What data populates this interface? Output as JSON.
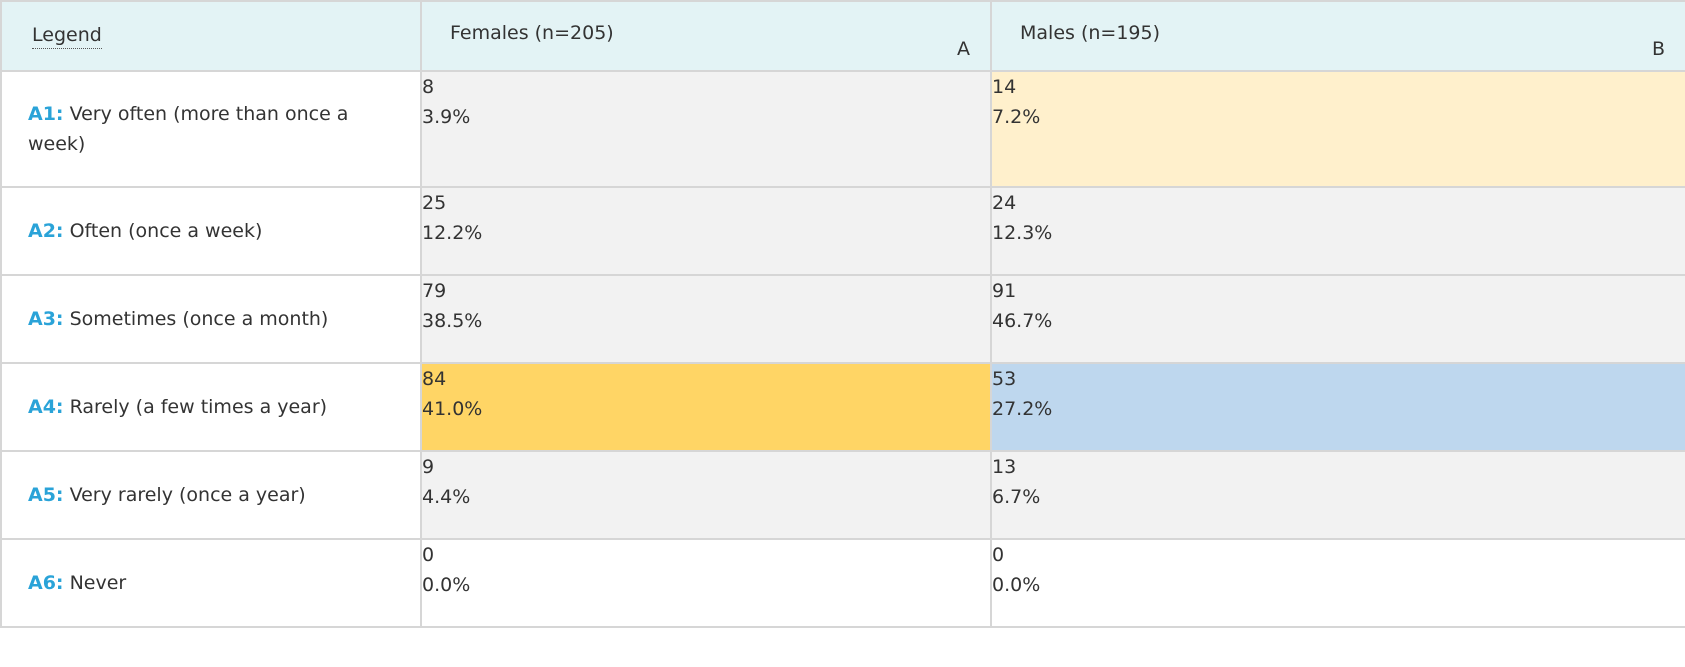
{
  "header": {
    "legend_label": "Legend",
    "columns": [
      {
        "title": "Females (n=205)",
        "letter": "A"
      },
      {
        "title": "Males (n=195)",
        "letter": "B"
      }
    ]
  },
  "rows": [
    {
      "code": "A1:",
      "label": "Very often (more than once a week)",
      "cells": [
        {
          "count": "8",
          "pct": "3.9%"
        },
        {
          "count": "14",
          "pct": "7.2%"
        }
      ]
    },
    {
      "code": "A2:",
      "label": "Often (once a week)",
      "cells": [
        {
          "count": "25",
          "pct": "12.2%"
        },
        {
          "count": "24",
          "pct": "12.3%"
        }
      ]
    },
    {
      "code": "A3:",
      "label": "Sometimes (once a month)",
      "cells": [
        {
          "count": "79",
          "pct": "38.5%"
        },
        {
          "count": "91",
          "pct": "46.7%"
        }
      ]
    },
    {
      "code": "A4:",
      "label": "Rarely (a few times a year)",
      "cells": [
        {
          "count": "84",
          "pct": "41.0%"
        },
        {
          "count": "53",
          "pct": "27.2%"
        }
      ]
    },
    {
      "code": "A5:",
      "label": "Very rarely (once a year)",
      "cells": [
        {
          "count": "9",
          "pct": "4.4%"
        },
        {
          "count": "13",
          "pct": "6.7%"
        }
      ]
    },
    {
      "code": "A6:",
      "label": "Never",
      "cells": [
        {
          "count": "0",
          "pct": "0.0%"
        },
        {
          "count": "0",
          "pct": "0.0%"
        }
      ]
    }
  ],
  "colors": {
    "header_bg": "#e3f3f5",
    "answer_code": "#2aa3d8",
    "cell_default": "#f2f2f2",
    "highlight_light_yellow": "#fff0cc",
    "highlight_yellow": "#ffd565",
    "highlight_blue": "#bed7ee"
  }
}
